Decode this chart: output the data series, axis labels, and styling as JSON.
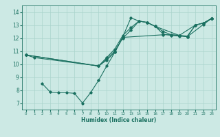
{
  "title": "",
  "xlabel": "Humidex (Indice chaleur)",
  "xlim": [
    -0.5,
    23.5
  ],
  "ylim": [
    6.5,
    14.5
  ],
  "xticks": [
    0,
    1,
    2,
    3,
    4,
    5,
    6,
    7,
    8,
    9,
    10,
    11,
    12,
    13,
    14,
    15,
    16,
    17,
    18,
    19,
    20,
    21,
    22,
    23
  ],
  "yticks": [
    7,
    8,
    9,
    10,
    11,
    12,
    13,
    14
  ],
  "bg_color": "#cce9e4",
  "grid_color": "#aad4cc",
  "line_color": "#1a7060",
  "lines": [
    {
      "x": [
        0,
        1,
        9,
        10,
        11,
        12,
        13,
        14,
        15,
        16,
        19,
        21,
        22,
        23
      ],
      "y": [
        10.7,
        10.5,
        9.85,
        10.3,
        10.9,
        12.1,
        13.55,
        13.3,
        13.2,
        12.9,
        12.2,
        13.0,
        13.15,
        13.5
      ]
    },
    {
      "x": [
        2,
        3,
        4,
        5,
        6,
        7,
        8,
        9,
        10,
        11,
        12,
        17,
        18,
        19,
        20,
        22,
        23
      ],
      "y": [
        8.5,
        7.85,
        7.8,
        7.8,
        7.75,
        7.0,
        7.8,
        8.75,
        9.85,
        10.9,
        12.05,
        12.25,
        12.25,
        12.2,
        12.1,
        13.05,
        13.5
      ]
    },
    {
      "x": [
        0,
        9,
        10,
        11,
        12,
        13,
        14,
        15,
        16,
        17,
        18,
        19,
        20,
        21,
        22,
        23
      ],
      "y": [
        10.7,
        9.85,
        10.5,
        11.15,
        12.2,
        12.8,
        13.3,
        13.2,
        12.9,
        12.5,
        12.25,
        12.2,
        12.15,
        13.0,
        13.15,
        13.5
      ]
    },
    {
      "x": [
        0,
        9,
        10,
        11,
        12,
        13,
        14,
        15,
        16,
        17,
        18,
        19,
        20,
        21,
        22,
        23
      ],
      "y": [
        10.7,
        9.85,
        10.4,
        11.0,
        12.0,
        12.6,
        13.3,
        13.2,
        12.9,
        12.3,
        12.2,
        12.15,
        12.1,
        13.0,
        13.15,
        13.5
      ]
    }
  ]
}
